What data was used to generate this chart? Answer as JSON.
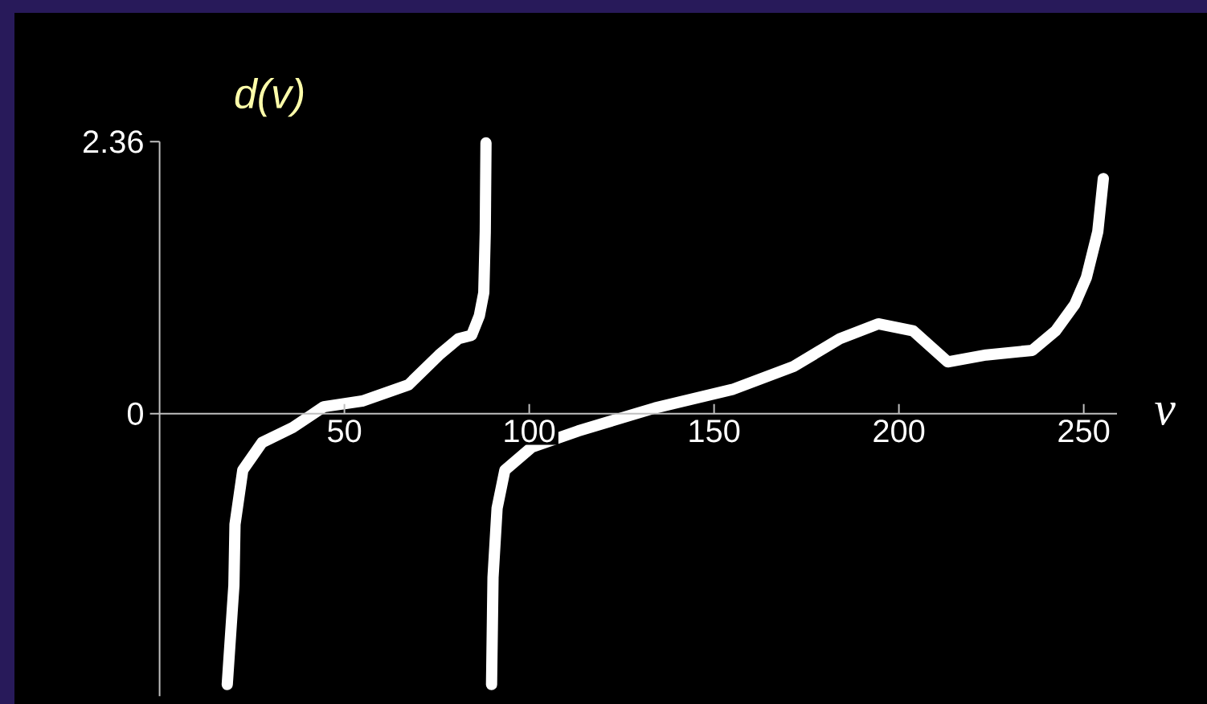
{
  "chart_data": {
    "type": "line",
    "xlabel": "v",
    "ylabel": "d(v)",
    "xlim": [
      0,
      259
    ],
    "ylim": [
      -2.45,
      2.36
    ],
    "xticks": [
      50,
      100,
      150,
      200,
      250
    ],
    "yticks": [
      0,
      2.36
    ],
    "marker": "none",
    "line_style": "solid",
    "series": [
      {
        "color": "#ffffff",
        "x": [
          18.3,
          20.1,
          20.4,
          22.5,
          27.7,
          36,
          44.4,
          54.8,
          67.3,
          75.6,
          80.8,
          84.4,
          86.5,
          87.7,
          88.1,
          88.3
        ],
        "values": [
          -2.35,
          -1.49,
          -0.96,
          -0.49,
          -0.25,
          -0.12,
          0.06,
          0.11,
          0.25,
          0.51,
          0.65,
          0.68,
          0.85,
          1.05,
          1.58,
          2.35
        ]
      },
      {
        "color": "#ffffff",
        "x": [
          89.8,
          90.2,
          91.3,
          93.4,
          100.7,
          113.2,
          134,
          154.9,
          171.5,
          184,
          194.4,
          203.8,
          213.2,
          223.6,
          236.1,
          242.4,
          247.6,
          250.7,
          253.8,
          255.3
        ],
        "values": [
          -2.35,
          -1.42,
          -0.82,
          -0.49,
          -0.29,
          -0.15,
          0.05,
          0.21,
          0.41,
          0.65,
          0.78,
          0.72,
          0.45,
          0.51,
          0.55,
          0.72,
          0.95,
          1.18,
          1.58,
          2.04
        ]
      }
    ]
  }
}
